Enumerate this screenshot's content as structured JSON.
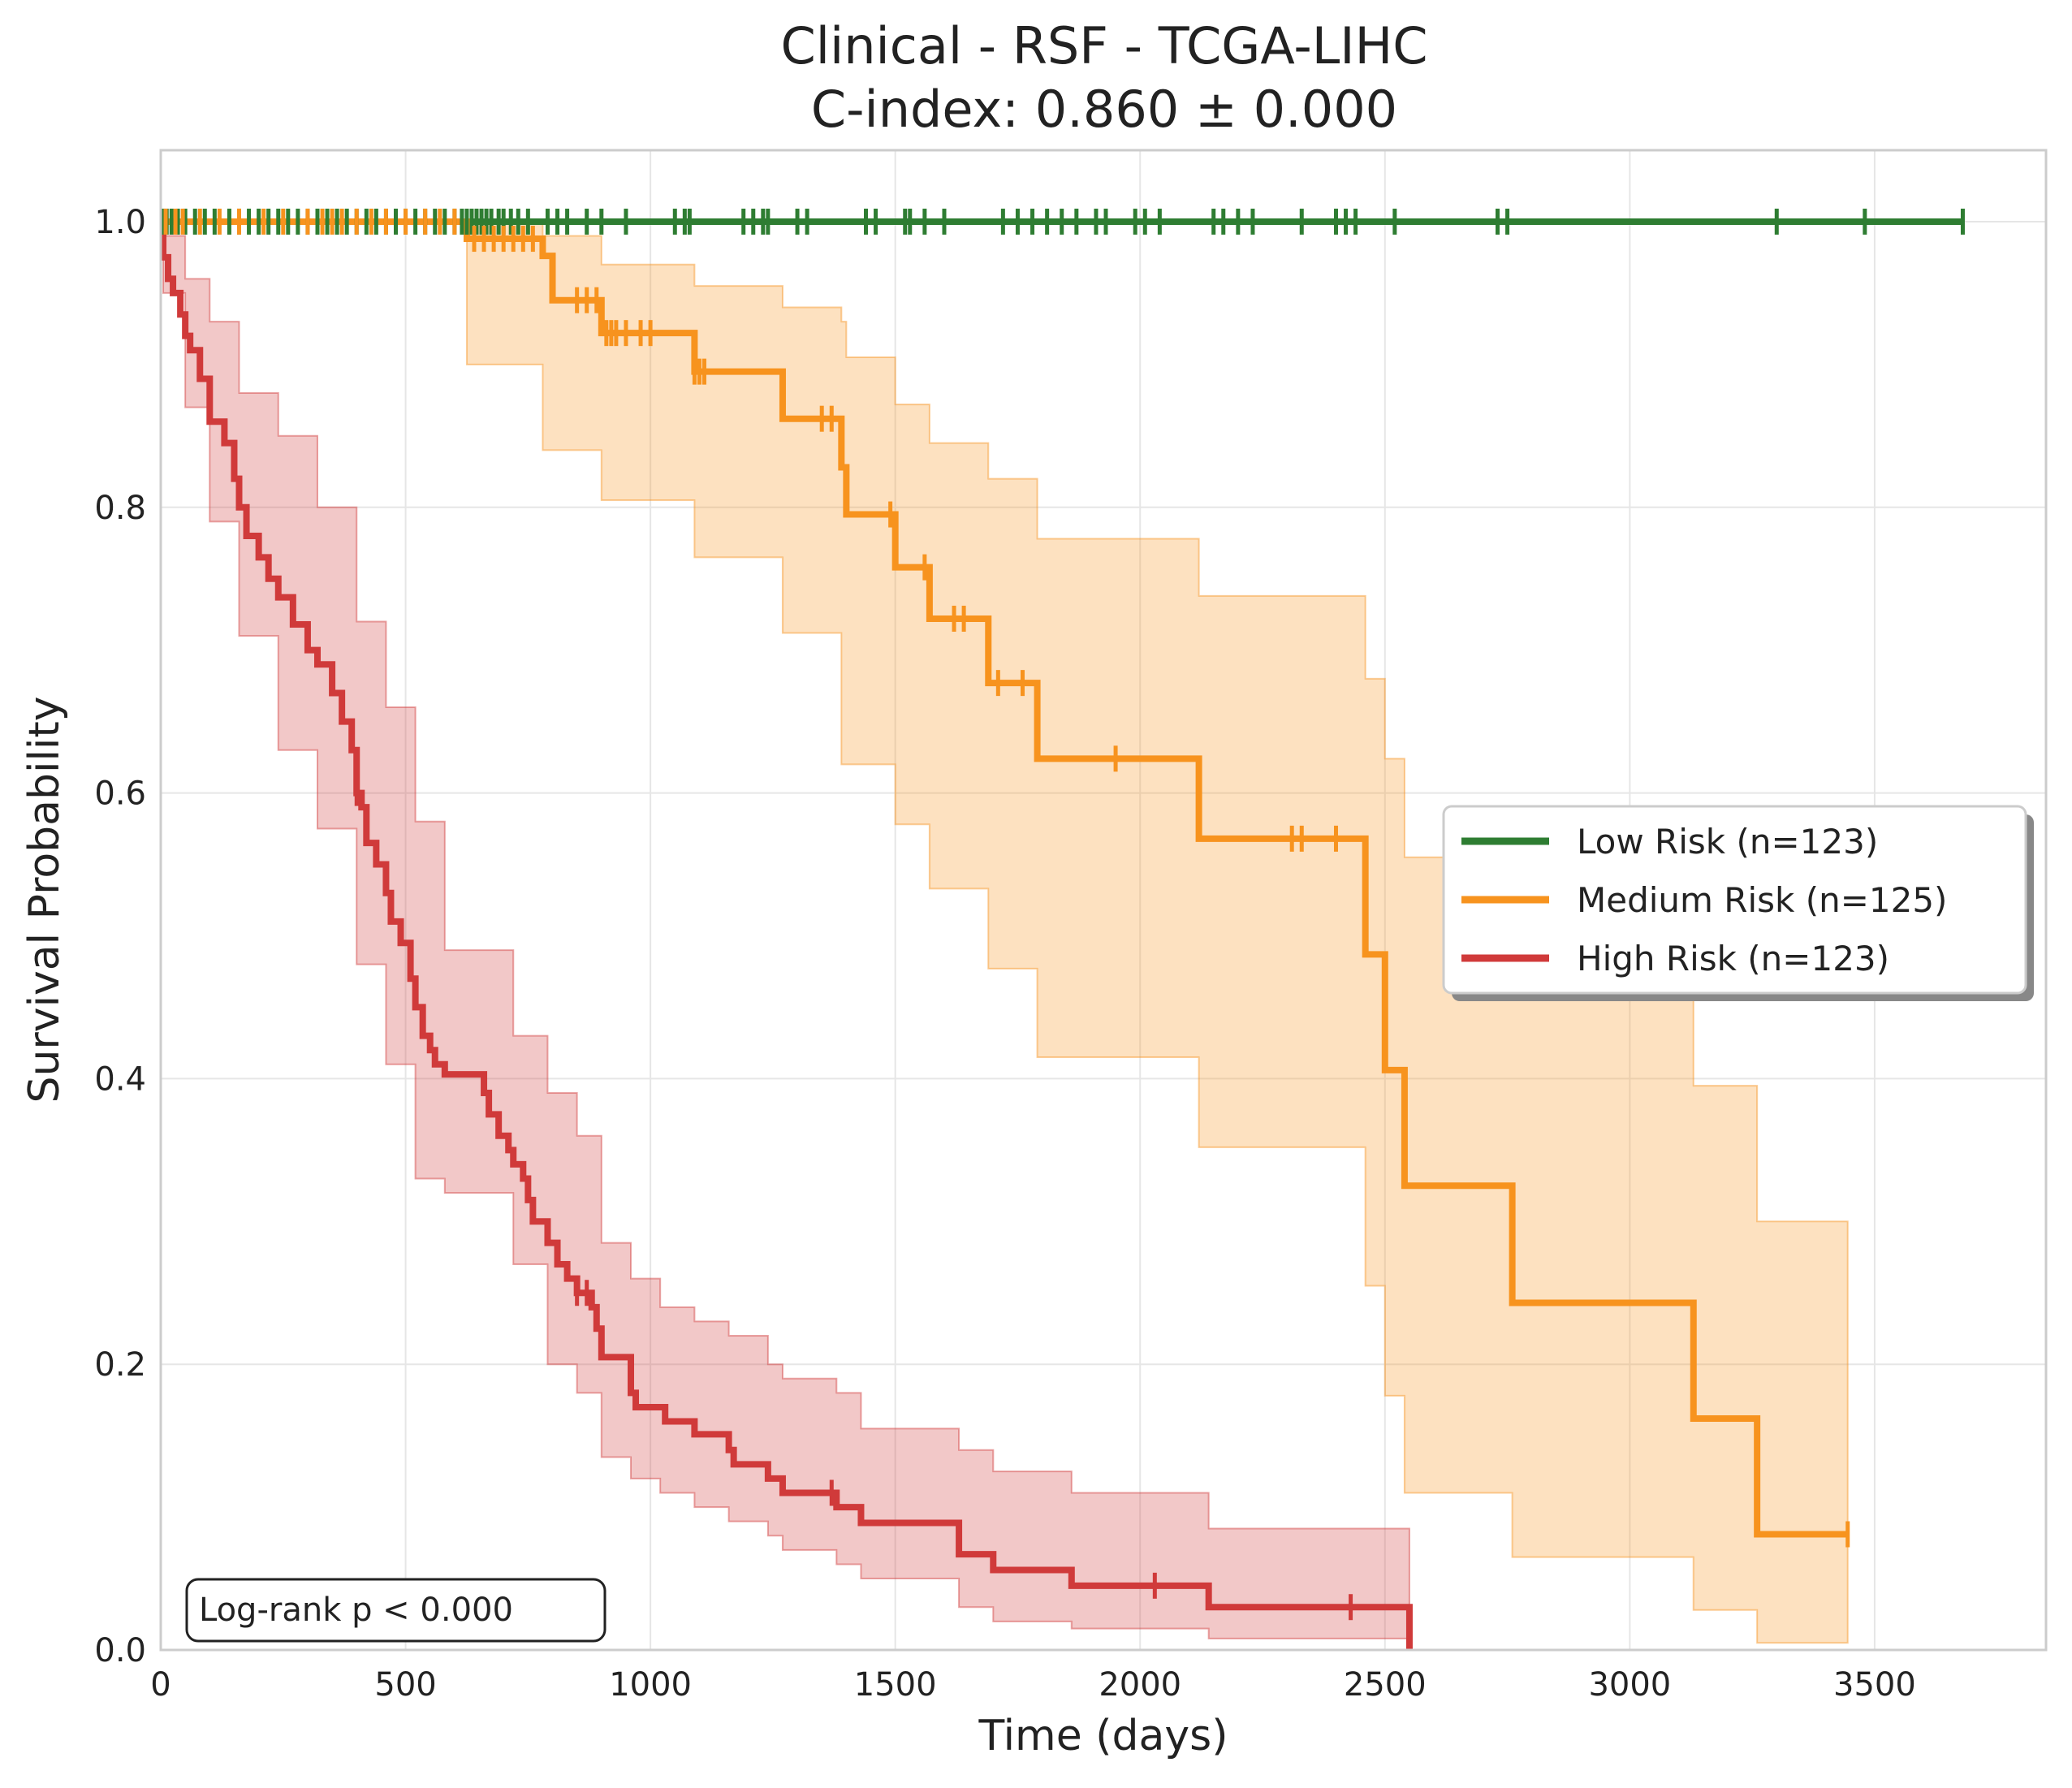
{
  "chart_data": {
    "type": "line",
    "subtype": "kaplan-meier survival curves",
    "title": "Clinical - RSF - TCGA-LIHC",
    "subtitle": "C-index: 0.860 ± 0.000",
    "xlabel": "Time (days)",
    "ylabel": "Survival Probability",
    "xlim": [
      0,
      3850
    ],
    "ylim": [
      0,
      1.05
    ],
    "xticks": [
      0,
      500,
      1000,
      1500,
      2000,
      2500,
      3000,
      3500
    ],
    "yticks": [
      0.0,
      0.2,
      0.4,
      0.6,
      0.8,
      1.0
    ],
    "xtick_labels": [
      "0",
      "500",
      "1000",
      "1500",
      "2000",
      "2500",
      "3000",
      "3500"
    ],
    "ytick_labels": [
      "0.0",
      "0.2",
      "0.4",
      "0.6",
      "0.8",
      "1.0"
    ],
    "grid": true,
    "legend_position": "center-right",
    "annotation": "Log-rank p < 0.000",
    "series": [
      {
        "name": "Low Risk (n=123)",
        "color": "#2e7d32",
        "steps": [
          [
            0,
            1.0
          ],
          [
            3680,
            1.0
          ]
        ],
        "ci_lower": [
          [
            0,
            1.0
          ],
          [
            3680,
            1.0
          ]
        ],
        "ci_upper": [
          [
            0,
            1.0
          ],
          [
            3680,
            1.0
          ]
        ],
        "censor_times": [
          5,
          12,
          22,
          35,
          50,
          70,
          90,
          110,
          140,
          160,
          180,
          200,
          220,
          240,
          260,
          280,
          300,
          320,
          340,
          360,
          380,
          400,
          420,
          440,
          460,
          480,
          500,
          520,
          540,
          560,
          580,
          600,
          615,
          625,
          635,
          645,
          655,
          665,
          675,
          690,
          700,
          715,
          730,
          750,
          790,
          810,
          830,
          870,
          900,
          950,
          1050,
          1070,
          1080,
          1190,
          1210,
          1230,
          1240,
          1300,
          1320,
          1440,
          1460,
          1520,
          1530,
          1560,
          1600,
          1720,
          1750,
          1780,
          1810,
          1840,
          1870,
          1910,
          1930,
          1990,
          2010,
          2040,
          2150,
          2170,
          2200,
          2230,
          2330,
          2400,
          2420,
          2440,
          2520,
          2730,
          2750,
          3300,
          3480,
          3680
        ]
      },
      {
        "name": "Medium Risk (n=125)",
        "color": "#f7931e",
        "steps": [
          [
            0,
            1.0
          ],
          [
            625,
            1.0
          ],
          [
            625,
            0.988
          ],
          [
            780,
            0.988
          ],
          [
            780,
            0.976
          ],
          [
            800,
            0.976
          ],
          [
            800,
            0.945
          ],
          [
            900,
            0.945
          ],
          [
            900,
            0.922
          ],
          [
            1090,
            0.922
          ],
          [
            1090,
            0.895
          ],
          [
            1270,
            0.895
          ],
          [
            1270,
            0.862
          ],
          [
            1390,
            0.862
          ],
          [
            1390,
            0.828
          ],
          [
            1400,
            0.828
          ],
          [
            1400,
            0.795
          ],
          [
            1500,
            0.795
          ],
          [
            1500,
            0.758
          ],
          [
            1570,
            0.758
          ],
          [
            1570,
            0.722
          ],
          [
            1690,
            0.722
          ],
          [
            1690,
            0.677
          ],
          [
            1790,
            0.677
          ],
          [
            1790,
            0.624
          ],
          [
            2120,
            0.624
          ],
          [
            2120,
            0.568
          ],
          [
            2460,
            0.568
          ],
          [
            2460,
            0.487
          ],
          [
            2500,
            0.487
          ],
          [
            2500,
            0.406
          ],
          [
            2540,
            0.406
          ],
          [
            2540,
            0.325
          ],
          [
            2760,
            0.325
          ],
          [
            2760,
            0.243
          ],
          [
            3130,
            0.243
          ],
          [
            3130,
            0.162
          ],
          [
            3260,
            0.162
          ],
          [
            3260,
            0.081
          ],
          [
            3445,
            0.081
          ]
        ],
        "ci_lower": [
          [
            0,
            1.0
          ],
          [
            625,
            1.0
          ],
          [
            625,
            0.9
          ],
          [
            780,
            0.9
          ],
          [
            780,
            0.84
          ],
          [
            900,
            0.84
          ],
          [
            900,
            0.805
          ],
          [
            1090,
            0.805
          ],
          [
            1090,
            0.765
          ],
          [
            1270,
            0.765
          ],
          [
            1270,
            0.712
          ],
          [
            1390,
            0.712
          ],
          [
            1390,
            0.62
          ],
          [
            1400,
            0.62
          ],
          [
            1400,
            0.62
          ],
          [
            1500,
            0.62
          ],
          [
            1500,
            0.578
          ],
          [
            1570,
            0.578
          ],
          [
            1570,
            0.533
          ],
          [
            1690,
            0.533
          ],
          [
            1690,
            0.477
          ],
          [
            1790,
            0.477
          ],
          [
            1790,
            0.415
          ],
          [
            2120,
            0.415
          ],
          [
            2120,
            0.352
          ],
          [
            2460,
            0.352
          ],
          [
            2460,
            0.255
          ],
          [
            2500,
            0.255
          ],
          [
            2500,
            0.178
          ],
          [
            2540,
            0.178
          ],
          [
            2540,
            0.11
          ],
          [
            2760,
            0.11
          ],
          [
            2760,
            0.065
          ],
          [
            3130,
            0.065
          ],
          [
            3130,
            0.028
          ],
          [
            3260,
            0.028
          ],
          [
            3260,
            0.005
          ],
          [
            3445,
            0.005
          ]
        ],
        "ci_upper": [
          [
            0,
            1.0
          ],
          [
            625,
            1.0
          ],
          [
            625,
            0.999
          ],
          [
            780,
            0.999
          ],
          [
            780,
            0.99
          ],
          [
            900,
            0.99
          ],
          [
            900,
            0.97
          ],
          [
            1090,
            0.97
          ],
          [
            1090,
            0.955
          ],
          [
            1270,
            0.955
          ],
          [
            1270,
            0.94
          ],
          [
            1390,
            0.94
          ],
          [
            1390,
            0.93
          ],
          [
            1400,
            0.93
          ],
          [
            1400,
            0.905
          ],
          [
            1500,
            0.905
          ],
          [
            1500,
            0.872
          ],
          [
            1570,
            0.872
          ],
          [
            1570,
            0.845
          ],
          [
            1690,
            0.845
          ],
          [
            1690,
            0.82
          ],
          [
            1790,
            0.82
          ],
          [
            1790,
            0.778
          ],
          [
            2120,
            0.778
          ],
          [
            2120,
            0.738
          ],
          [
            2460,
            0.738
          ],
          [
            2460,
            0.68
          ],
          [
            2500,
            0.68
          ],
          [
            2500,
            0.624
          ],
          [
            2540,
            0.624
          ],
          [
            2540,
            0.555
          ],
          [
            2760,
            0.555
          ],
          [
            2760,
            0.48
          ],
          [
            3130,
            0.48
          ],
          [
            3130,
            0.395
          ],
          [
            3260,
            0.395
          ],
          [
            3260,
            0.3
          ],
          [
            3445,
            0.3
          ]
        ],
        "censor_times": [
          10,
          30,
          45,
          80,
          120,
          160,
          210,
          250,
          300,
          330,
          350,
          370,
          400,
          430,
          460,
          500,
          540,
          570,
          600,
          640,
          660,
          680,
          700,
          720,
          740,
          760,
          850,
          870,
          890,
          910,
          920,
          930,
          950,
          980,
          1000,
          1090,
          1100,
          1110,
          1350,
          1370,
          1490,
          1560,
          1620,
          1640,
          1710,
          1760,
          1950,
          2310,
          2330,
          2400,
          3445
        ]
      },
      {
        "name": "High Risk (n=123)",
        "color": "#d03a3a",
        "steps": [
          [
            0,
            1.0
          ],
          [
            5,
            0.975
          ],
          [
            15,
            0.96
          ],
          [
            25,
            0.95
          ],
          [
            40,
            0.935
          ],
          [
            50,
            0.92
          ],
          [
            60,
            0.91
          ],
          [
            80,
            0.89
          ],
          [
            100,
            0.86
          ],
          [
            130,
            0.845
          ],
          [
            150,
            0.82
          ],
          [
            160,
            0.8
          ],
          [
            175,
            0.78
          ],
          [
            200,
            0.765
          ],
          [
            220,
            0.75
          ],
          [
            240,
            0.737
          ],
          [
            270,
            0.718
          ],
          [
            300,
            0.7
          ],
          [
            320,
            0.69
          ],
          [
            350,
            0.67
          ],
          [
            370,
            0.65
          ],
          [
            390,
            0.63
          ],
          [
            400,
            0.6
          ],
          [
            410,
            0.59
          ],
          [
            420,
            0.565
          ],
          [
            440,
            0.55
          ],
          [
            460,
            0.53
          ],
          [
            470,
            0.51
          ],
          [
            490,
            0.495
          ],
          [
            510,
            0.47
          ],
          [
            520,
            0.45
          ],
          [
            535,
            0.43
          ],
          [
            550,
            0.42
          ],
          [
            560,
            0.41
          ],
          [
            580,
            0.403
          ],
          [
            650,
            0.403
          ],
          [
            660,
            0.39
          ],
          [
            670,
            0.375
          ],
          [
            690,
            0.36
          ],
          [
            710,
            0.35
          ],
          [
            720,
            0.34
          ],
          [
            740,
            0.33
          ],
          [
            750,
            0.315
          ],
          [
            760,
            0.3
          ],
          [
            790,
            0.285
          ],
          [
            810,
            0.27
          ],
          [
            830,
            0.26
          ],
          [
            850,
            0.25
          ],
          [
            880,
            0.24
          ],
          [
            890,
            0.225
          ],
          [
            900,
            0.205
          ],
          [
            950,
            0.205
          ],
          [
            960,
            0.18
          ],
          [
            970,
            0.17
          ],
          [
            1020,
            0.17
          ],
          [
            1030,
            0.16
          ],
          [
            1090,
            0.16
          ],
          [
            1090,
            0.151
          ],
          [
            1160,
            0.151
          ],
          [
            1160,
            0.14
          ],
          [
            1170,
            0.13
          ],
          [
            1240,
            0.13
          ],
          [
            1240,
            0.12
          ],
          [
            1270,
            0.12
          ],
          [
            1270,
            0.11
          ],
          [
            1380,
            0.11
          ],
          [
            1380,
            0.1
          ],
          [
            1430,
            0.1
          ],
          [
            1430,
            0.089
          ],
          [
            1630,
            0.089
          ],
          [
            1630,
            0.067
          ],
          [
            1700,
            0.067
          ],
          [
            1700,
            0.056
          ],
          [
            1860,
            0.056
          ],
          [
            1860,
            0.045
          ],
          [
            2140,
            0.045
          ],
          [
            2140,
            0.03
          ],
          [
            2550,
            0.03
          ],
          [
            2550,
            0.0
          ]
        ],
        "ci_lower": [
          [
            0,
            1.0
          ],
          [
            5,
            0.95
          ],
          [
            50,
            0.87
          ],
          [
            100,
            0.79
          ],
          [
            160,
            0.71
          ],
          [
            240,
            0.63
          ],
          [
            320,
            0.575
          ],
          [
            400,
            0.48
          ],
          [
            460,
            0.41
          ],
          [
            520,
            0.33
          ],
          [
            580,
            0.32
          ],
          [
            650,
            0.32
          ],
          [
            720,
            0.27
          ],
          [
            790,
            0.2
          ],
          [
            850,
            0.18
          ],
          [
            900,
            0.135
          ],
          [
            960,
            0.12
          ],
          [
            1020,
            0.11
          ],
          [
            1090,
            0.1
          ],
          [
            1160,
            0.09
          ],
          [
            1240,
            0.08
          ],
          [
            1270,
            0.07
          ],
          [
            1380,
            0.06
          ],
          [
            1430,
            0.05
          ],
          [
            1630,
            0.03
          ],
          [
            1700,
            0.02
          ],
          [
            1860,
            0.015
          ],
          [
            2140,
            0.008
          ],
          [
            2550,
            0.008
          ]
        ],
        "ci_upper": [
          [
            0,
            1.0
          ],
          [
            5,
            0.99
          ],
          [
            50,
            0.96
          ],
          [
            100,
            0.93
          ],
          [
            160,
            0.88
          ],
          [
            240,
            0.85
          ],
          [
            320,
            0.8
          ],
          [
            400,
            0.72
          ],
          [
            460,
            0.66
          ],
          [
            520,
            0.58
          ],
          [
            580,
            0.49
          ],
          [
            650,
            0.49
          ],
          [
            720,
            0.43
          ],
          [
            790,
            0.39
          ],
          [
            850,
            0.36
          ],
          [
            900,
            0.285
          ],
          [
            960,
            0.26
          ],
          [
            1020,
            0.24
          ],
          [
            1090,
            0.23
          ],
          [
            1160,
            0.22
          ],
          [
            1240,
            0.2
          ],
          [
            1270,
            0.19
          ],
          [
            1380,
            0.18
          ],
          [
            1430,
            0.155
          ],
          [
            1630,
            0.14
          ],
          [
            1700,
            0.125
          ],
          [
            1860,
            0.11
          ],
          [
            2140,
            0.085
          ],
          [
            2550,
            0.085
          ]
        ],
        "censor_times": [
          400,
          850,
          870,
          1370,
          2030,
          2430
        ]
      }
    ]
  }
}
